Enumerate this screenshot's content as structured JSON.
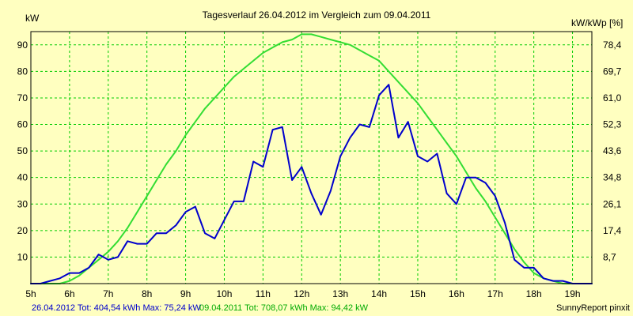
{
  "chart_data": {
    "type": "line",
    "title": "Tagesverlauf 26.04.2012 im Vergleich zum 09.04.2011",
    "ylabel_left": "kW",
    "ylabel_right": "kW/kWp [%]",
    "x_ticks": [
      "5h",
      "6h",
      "7h",
      "8h",
      "9h",
      "10h",
      "11h",
      "12h",
      "13h",
      "14h",
      "15h",
      "16h",
      "17h",
      "18h",
      "19h"
    ],
    "x_range": [
      5,
      19.5
    ],
    "ylim": [
      0,
      95
    ],
    "y_ticks_left": [
      10,
      20,
      30,
      40,
      50,
      60,
      70,
      80,
      90
    ],
    "y_ticks_right": [
      "8,7",
      "17,4",
      "26,1",
      "34,8",
      "43,6",
      "52,3",
      "61,0",
      "69,7",
      "78,4"
    ],
    "grid": true,
    "series": [
      {
        "name": "26.04.2012",
        "color": "#0000CC",
        "x": [
          5.0,
          5.25,
          5.5,
          5.75,
          6.0,
          6.25,
          6.5,
          6.75,
          7.0,
          7.25,
          7.5,
          7.75,
          8.0,
          8.25,
          8.5,
          8.75,
          9.0,
          9.25,
          9.5,
          9.75,
          10.0,
          10.25,
          10.5,
          10.75,
          11.0,
          11.25,
          11.5,
          11.75,
          12.0,
          12.25,
          12.5,
          12.75,
          13.0,
          13.25,
          13.5,
          13.75,
          14.0,
          14.25,
          14.5,
          14.75,
          15.0,
          15.25,
          15.5,
          15.75,
          16.0,
          16.25,
          16.5,
          16.75,
          17.0,
          17.25,
          17.5,
          17.75,
          18.0,
          18.25,
          18.5,
          18.75,
          19.0,
          19.25,
          19.5
        ],
        "y": [
          0,
          0,
          1,
          2,
          4,
          4,
          6,
          11,
          9,
          10,
          16,
          15,
          15,
          19,
          19,
          22,
          27,
          29,
          19,
          17,
          24,
          31,
          31,
          46,
          44,
          58,
          59,
          39,
          44,
          34,
          26,
          35,
          48,
          55,
          60,
          59,
          71,
          75,
          55,
          61,
          48,
          46,
          49,
          34,
          30,
          40,
          40,
          38,
          33,
          23,
          9,
          6,
          6,
          2,
          1,
          1,
          0,
          0,
          0
        ],
        "total_label": "26.04.2012 Tot: 404,54 kWh Max: 75,24 kW"
      },
      {
        "name": "09.04.2011",
        "color": "#33DD33",
        "x": [
          5.0,
          5.25,
          5.5,
          5.75,
          6.0,
          6.25,
          6.5,
          6.75,
          7.0,
          7.25,
          7.5,
          7.75,
          8.0,
          8.25,
          8.5,
          8.75,
          9.0,
          9.25,
          9.5,
          9.75,
          10.0,
          10.25,
          10.5,
          10.75,
          11.0,
          11.25,
          11.5,
          11.75,
          12.0,
          12.25,
          12.5,
          12.75,
          13.0,
          13.25,
          13.5,
          13.75,
          14.0,
          14.25,
          14.5,
          14.75,
          15.0,
          15.25,
          15.5,
          15.75,
          16.0,
          16.25,
          16.5,
          16.75,
          17.0,
          17.25,
          17.5,
          17.75,
          18.0,
          18.25,
          18.5,
          18.75,
          19.0,
          19.25,
          19.5
        ],
        "y": [
          0,
          0,
          0,
          0,
          1,
          3,
          6,
          9,
          12,
          16,
          21,
          27,
          33,
          39,
          45,
          50,
          56,
          61,
          66,
          70,
          74,
          78,
          81,
          84,
          87,
          89,
          91,
          92,
          94,
          94,
          93,
          92,
          91,
          90,
          88,
          86,
          84,
          80,
          76,
          72,
          68,
          63,
          58,
          53,
          48,
          42,
          36,
          31,
          25,
          19,
          13,
          8,
          4,
          2,
          1,
          0,
          0,
          0,
          0
        ],
        "total_label": "09.04.2011 Tot: 708,07 kWh Max: 94,42 kW"
      }
    ]
  },
  "footer": {
    "credit": "SunnyReport pinxit"
  },
  "colors": {
    "background": "#FFFFC0",
    "grid": "#00CC00",
    "axis": "#000000"
  }
}
